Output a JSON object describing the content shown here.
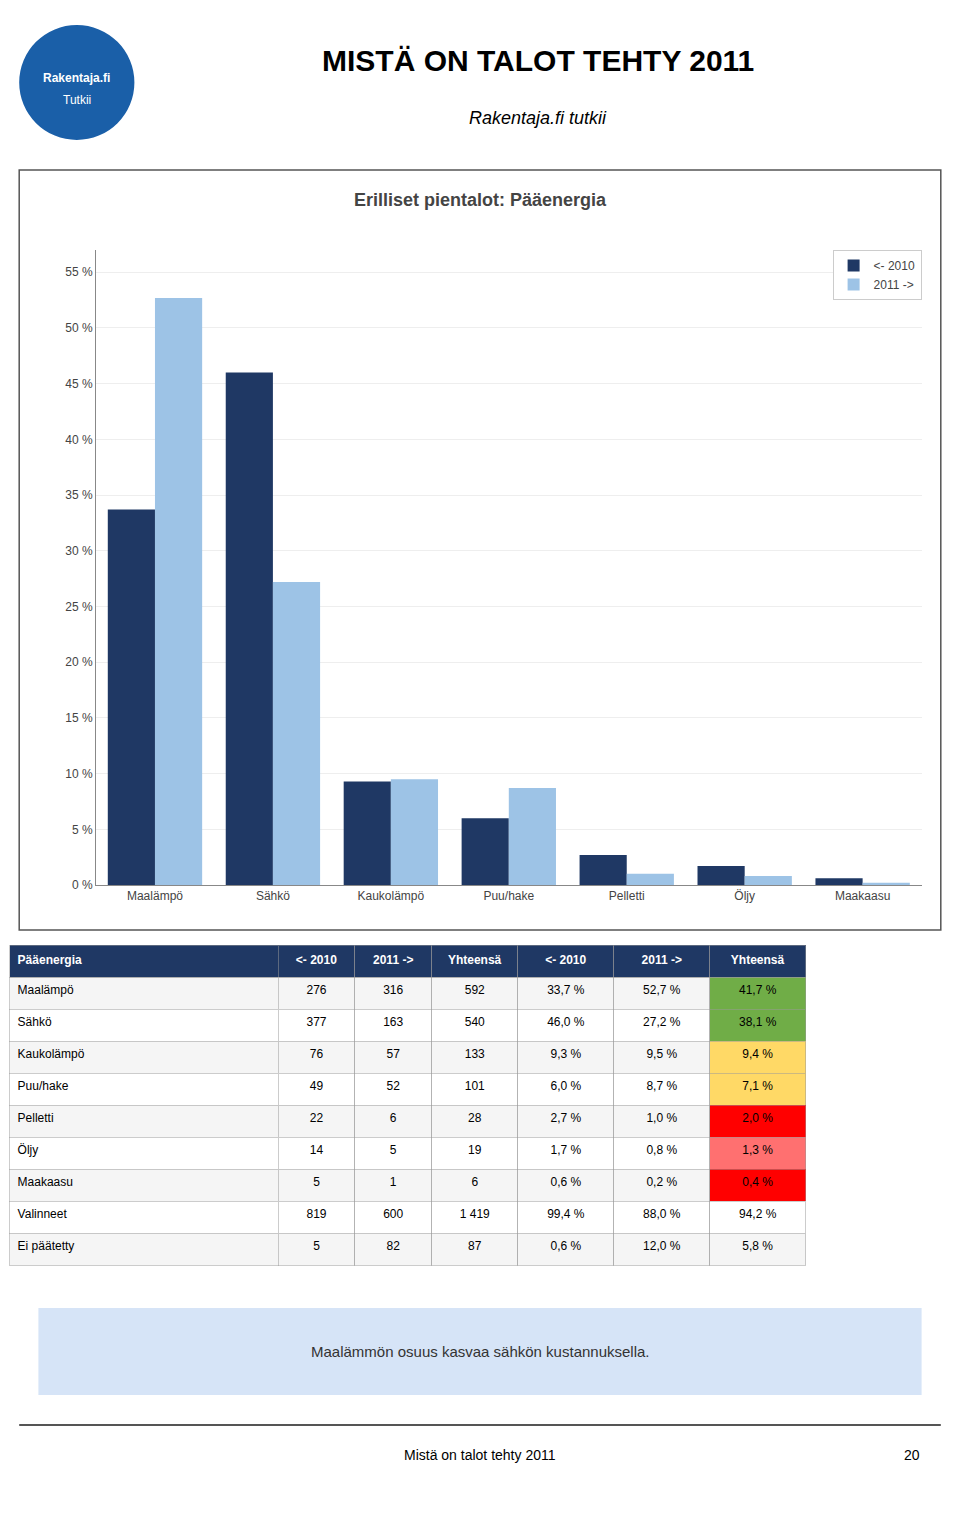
{
  "title": "MISTÄ ON TALOT TEHTY 2011",
  "subtitle": "Rakentaja.fi tutkii",
  "logo": {
    "texts": [
      "Rakentaja.fi",
      "Tutkii"
    ],
    "color": "#1a5fa8"
  },
  "footnote": {
    "text": "Maalämmön osuus kasvaa sähkön kustannuksella.",
    "color": "#D6E4F7"
  },
  "footer": "Mistä on talot tehty 2011",
  "page_number": "20",
  "chart_data": [
    {
      "type": "bar",
      "title": "Erilliset pientalot: Pääenergia",
      "categories": [
        "Maalämpö",
        "Sähkö",
        "Kaukolämpö",
        "Puu/hake",
        "Pelletti",
        "Öljy",
        "Maakaasu"
      ],
      "series": [
        {
          "name": "<- 2010",
          "color": "#1F3864",
          "values": [
            33.7,
            46.0,
            9.3,
            6.0,
            2.7,
            1.7,
            0.6
          ]
        },
        {
          "name": "2011 ->",
          "color": "#9DC3E6",
          "values": [
            52.7,
            27.2,
            9.5,
            8.7,
            1.0,
            0.8,
            0.2
          ]
        }
      ],
      "ylim": [
        0,
        57
      ],
      "yticks": [
        {
          "value": 0,
          "label": "0 %"
        },
        {
          "value": 5,
          "label": "5 %"
        },
        {
          "value": 10,
          "label": "10 %"
        },
        {
          "value": 15,
          "label": "15 %"
        },
        {
          "value": 20,
          "label": "20 %"
        },
        {
          "value": 25,
          "label": "25 %"
        },
        {
          "value": 30,
          "label": "30 %"
        },
        {
          "value": 35,
          "label": "35 %"
        },
        {
          "value": 40,
          "label": "40 %"
        },
        {
          "value": 45,
          "label": "45 %"
        },
        {
          "value": 50,
          "label": "50 %"
        },
        {
          "value": 55,
          "label": "55 %"
        }
      ],
      "grid": true,
      "legend": "upper right"
    },
    {
      "type": "table",
      "header": {
        "values": [
          "Pääenergia",
          "<- 2010",
          "2011 ->",
          "Yhteensä",
          "<- 2010",
          "2011 ->",
          "Yhteensä"
        ],
        "color": "#1F3864"
      },
      "rows": [
        [
          "Maalämpö",
          "276",
          "316",
          "592",
          "33,7 %",
          "52,7 %",
          "41,7 %"
        ],
        [
          "Sähkö",
          "377",
          "163",
          "540",
          "46,0 %",
          "27,2 %",
          "38,1 %"
        ],
        [
          "Kaukolämpö",
          "76",
          "57",
          "133",
          "9,3 %",
          "9,5 %",
          "9,4 %"
        ],
        [
          "Puu/hake",
          "49",
          "52",
          "101",
          "6,0 %",
          "8,7 %",
          "7,1 %"
        ],
        [
          "Pelletti",
          "22",
          "6",
          "28",
          "2,7 %",
          "1,0 %",
          "2,0 %"
        ],
        [
          "Öljy",
          "14",
          "5",
          "19",
          "1,7 %",
          "0,8 %",
          "1,3 %"
        ],
        [
          "Maakaasu",
          "5",
          "1",
          "6",
          "0,6 %",
          "0,2 %",
          "0,4 %"
        ],
        [
          "Valinneet",
          "819",
          "600",
          "1 419",
          "99,4 %",
          "88,0 %",
          "94,2 %"
        ],
        [
          "Ei päätetty",
          "5",
          "82",
          "87",
          "0,6 %",
          "12,0 %",
          "5,8 %"
        ]
      ],
      "colors": [
        "#70AD47",
        "#70AD47",
        "#FFD966",
        "#FFD966",
        "#FF0000",
        "#FF7070",
        "#FF0000",
        null,
        null
      ]
    }
  ]
}
